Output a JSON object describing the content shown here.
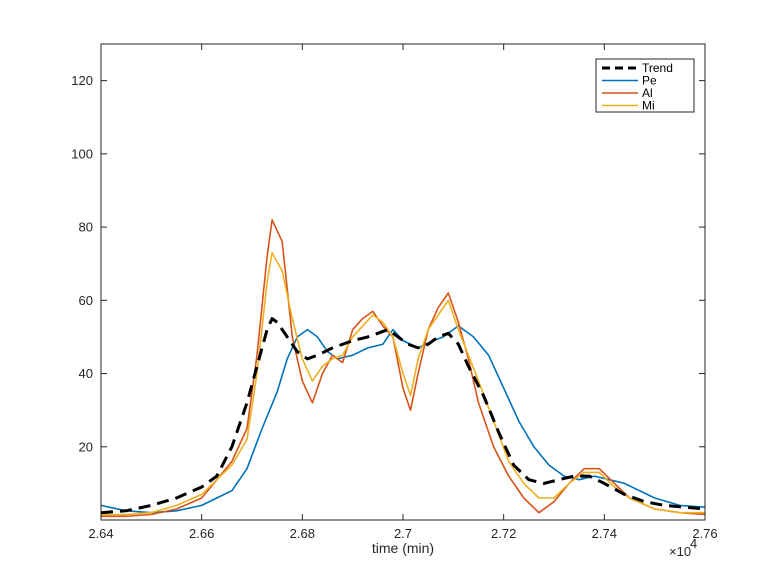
{
  "chart_data": {
    "type": "line",
    "title": "",
    "xlabel": "time (min)",
    "ylabel": "",
    "x_exponent_label": "×10",
    "x_exponent_power": "4",
    "xlim": [
      2.64,
      2.76
    ],
    "ylim": [
      0,
      130
    ],
    "x_ticks": [
      2.64,
      2.66,
      2.68,
      2.7,
      2.72,
      2.74,
      2.76
    ],
    "x_tick_labels": [
      "2.64",
      "2.66",
      "2.68",
      "2.7",
      "2.72",
      "2.74",
      "2.76"
    ],
    "y_ticks": [
      20,
      40,
      60,
      80,
      100,
      120
    ],
    "y_tick_labels": [
      "20",
      "40",
      "60",
      "80",
      "100",
      "120"
    ],
    "grid": false,
    "legend_position": "top-right",
    "series": [
      {
        "name": "Trend",
        "color": "#000000",
        "dashed": true,
        "points": [
          [
            2.64,
            2
          ],
          [
            2.645,
            2.5
          ],
          [
            2.65,
            4
          ],
          [
            2.655,
            6
          ],
          [
            2.66,
            9
          ],
          [
            2.663,
            12
          ],
          [
            2.666,
            20
          ],
          [
            2.669,
            32
          ],
          [
            2.671,
            42
          ],
          [
            2.673,
            52
          ],
          [
            2.674,
            55
          ],
          [
            2.675,
            54
          ],
          [
            2.677,
            50
          ],
          [
            2.679,
            46
          ],
          [
            2.681,
            44
          ],
          [
            2.683,
            45
          ],
          [
            2.686,
            47
          ],
          [
            2.69,
            49
          ],
          [
            2.693,
            50
          ],
          [
            2.695,
            51
          ],
          [
            2.697,
            52
          ],
          [
            2.699,
            50
          ],
          [
            2.701,
            48
          ],
          [
            2.703,
            47
          ],
          [
            2.705,
            48
          ],
          [
            2.707,
            50
          ],
          [
            2.709,
            51
          ],
          [
            2.711,
            48
          ],
          [
            2.713,
            42
          ],
          [
            2.716,
            34
          ],
          [
            2.719,
            24
          ],
          [
            2.722,
            15
          ],
          [
            2.725,
            11
          ],
          [
            2.728,
            10
          ],
          [
            2.731,
            11
          ],
          [
            2.734,
            12
          ],
          [
            2.737,
            12
          ],
          [
            2.74,
            10
          ],
          [
            2.744,
            7
          ],
          [
            2.748,
            5
          ],
          [
            2.752,
            4
          ],
          [
            2.756,
            3.5
          ],
          [
            2.76,
            3
          ]
        ]
      },
      {
        "name": "Pe",
        "color": "#0072bd",
        "dashed": false,
        "points": [
          [
            2.64,
            4
          ],
          [
            2.645,
            2.5
          ],
          [
            2.65,
            2
          ],
          [
            2.655,
            2.5
          ],
          [
            2.66,
            4
          ],
          [
            2.663,
            6
          ],
          [
            2.666,
            8
          ],
          [
            2.669,
            14
          ],
          [
            2.672,
            25
          ],
          [
            2.675,
            35
          ],
          [
            2.677,
            44
          ],
          [
            2.679,
            50
          ],
          [
            2.681,
            52
          ],
          [
            2.683,
            50
          ],
          [
            2.685,
            46
          ],
          [
            2.687,
            44
          ],
          [
            2.69,
            45
          ],
          [
            2.693,
            47
          ],
          [
            2.696,
            48
          ],
          [
            2.698,
            52
          ],
          [
            2.7,
            49
          ],
          [
            2.703,
            47
          ],
          [
            2.706,
            49
          ],
          [
            2.708,
            50
          ],
          [
            2.711,
            53
          ],
          [
            2.714,
            50
          ],
          [
            2.717,
            45
          ],
          [
            2.72,
            36
          ],
          [
            2.723,
            27
          ],
          [
            2.726,
            20
          ],
          [
            2.729,
            15
          ],
          [
            2.732,
            12
          ],
          [
            2.735,
            11
          ],
          [
            2.738,
            12
          ],
          [
            2.741,
            11
          ],
          [
            2.744,
            10
          ],
          [
            2.747,
            8
          ],
          [
            2.75,
            6
          ],
          [
            2.755,
            4
          ],
          [
            2.76,
            3.5
          ]
        ]
      },
      {
        "name": "Al",
        "color": "#d95319",
        "dashed": false,
        "points": [
          [
            2.64,
            1
          ],
          [
            2.645,
            1
          ],
          [
            2.65,
            1.5
          ],
          [
            2.655,
            3
          ],
          [
            2.66,
            6
          ],
          [
            2.663,
            11
          ],
          [
            2.666,
            16
          ],
          [
            2.669,
            25
          ],
          [
            2.671,
            45
          ],
          [
            2.673,
            72
          ],
          [
            2.674,
            82
          ],
          [
            2.676,
            76
          ],
          [
            2.678,
            50
          ],
          [
            2.68,
            38
          ],
          [
            2.682,
            32
          ],
          [
            2.684,
            40
          ],
          [
            2.686,
            45
          ],
          [
            2.688,
            43
          ],
          [
            2.69,
            52
          ],
          [
            2.692,
            55
          ],
          [
            2.694,
            57
          ],
          [
            2.696,
            53
          ],
          [
            2.698,
            50
          ],
          [
            2.7,
            36
          ],
          [
            2.7015,
            30
          ],
          [
            2.703,
            40
          ],
          [
            2.705,
            52
          ],
          [
            2.707,
            58
          ],
          [
            2.709,
            62
          ],
          [
            2.711,
            54
          ],
          [
            2.713,
            44
          ],
          [
            2.715,
            32
          ],
          [
            2.718,
            20
          ],
          [
            2.721,
            12
          ],
          [
            2.724,
            6
          ],
          [
            2.727,
            2
          ],
          [
            2.73,
            5
          ],
          [
            2.733,
            10
          ],
          [
            2.736,
            14
          ],
          [
            2.739,
            14
          ],
          [
            2.742,
            10
          ],
          [
            2.745,
            6
          ],
          [
            2.75,
            3
          ],
          [
            2.755,
            2
          ],
          [
            2.76,
            1.5
          ]
        ]
      },
      {
        "name": "Mi",
        "color": "#edb120",
        "dashed": false,
        "points": [
          [
            2.64,
            1.5
          ],
          [
            2.645,
            1.5
          ],
          [
            2.65,
            2
          ],
          [
            2.655,
            4
          ],
          [
            2.66,
            7
          ],
          [
            2.663,
            11
          ],
          [
            2.666,
            15
          ],
          [
            2.669,
            22
          ],
          [
            2.671,
            40
          ],
          [
            2.673,
            65
          ],
          [
            2.674,
            73
          ],
          [
            2.676,
            68
          ],
          [
            2.678,
            55
          ],
          [
            2.68,
            44
          ],
          [
            2.682,
            38
          ],
          [
            2.684,
            42
          ],
          [
            2.686,
            44
          ],
          [
            2.688,
            45
          ],
          [
            2.69,
            50
          ],
          [
            2.692,
            53
          ],
          [
            2.694,
            56
          ],
          [
            2.696,
            54
          ],
          [
            2.698,
            50
          ],
          [
            2.7,
            40
          ],
          [
            2.7015,
            34
          ],
          [
            2.703,
            44
          ],
          [
            2.705,
            52
          ],
          [
            2.707,
            56
          ],
          [
            2.709,
            60
          ],
          [
            2.711,
            52
          ],
          [
            2.713,
            45
          ],
          [
            2.715,
            38
          ],
          [
            2.718,
            27
          ],
          [
            2.721,
            16
          ],
          [
            2.724,
            10
          ],
          [
            2.727,
            6
          ],
          [
            2.73,
            6
          ],
          [
            2.733,
            10
          ],
          [
            2.736,
            13
          ],
          [
            2.739,
            13
          ],
          [
            2.742,
            9
          ],
          [
            2.745,
            6
          ],
          [
            2.75,
            3
          ],
          [
            2.755,
            2
          ],
          [
            2.76,
            2
          ]
        ]
      }
    ]
  }
}
